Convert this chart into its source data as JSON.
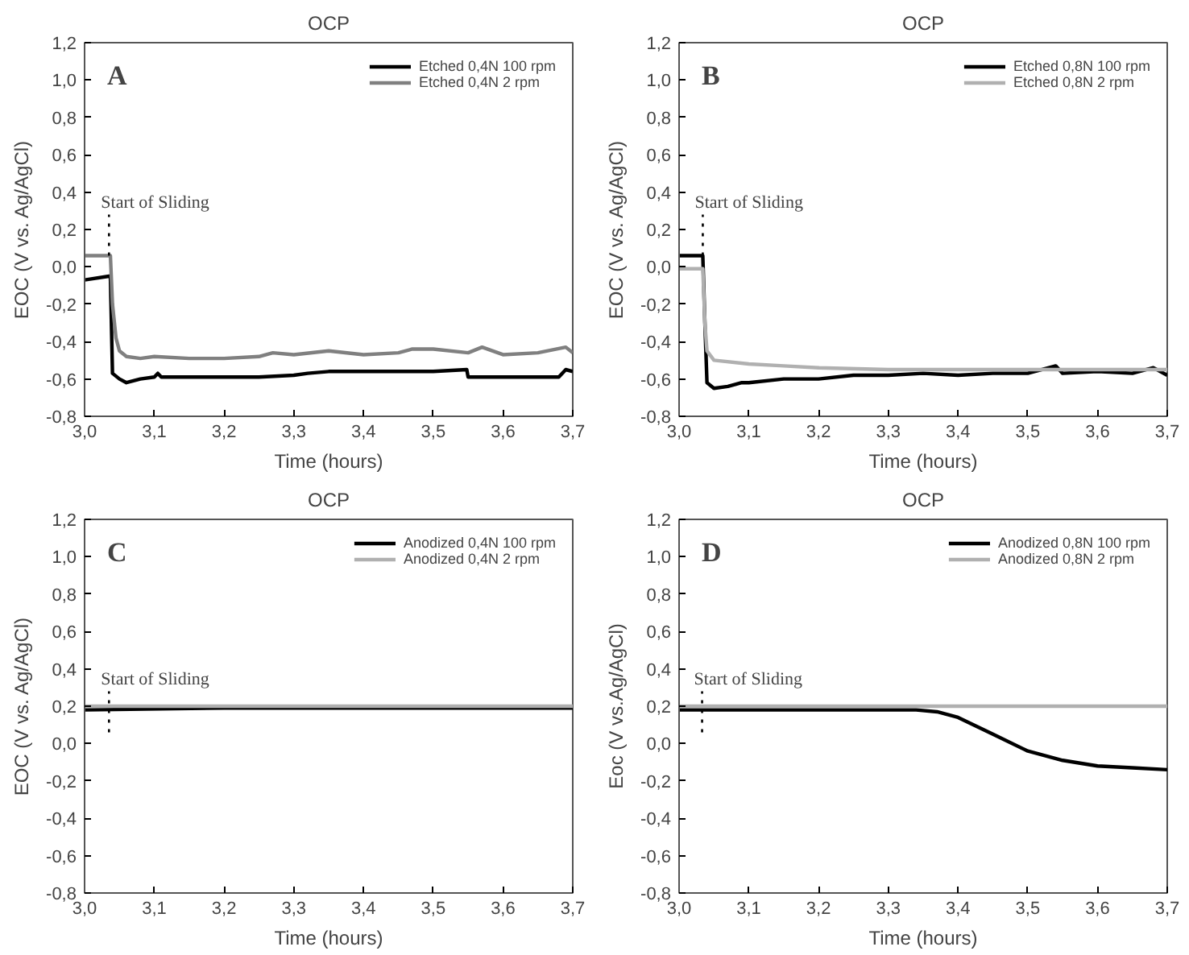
{
  "chart_data": [
    {
      "type": "line",
      "title": "OCP",
      "xlabel": "Time (hours)",
      "ylabel": "EOC (V vs. Ag/AgCl)",
      "annotations": [
        "A"
      ],
      "ref_lines": [
        {
          "axis": "x",
          "value": 3.035,
          "label": "Start of Sliding",
          "line_style": "dotted",
          "color": "#000000"
        }
      ],
      "xlim": [
        3.0,
        3.7
      ],
      "ylim": [
        -0.8,
        1.2
      ],
      "xticks": [
        {
          "value": 3.0,
          "label": "3,0"
        },
        {
          "value": 3.1,
          "label": "3,1"
        },
        {
          "value": 3.2,
          "label": "3,2"
        },
        {
          "value": 3.3,
          "label": "3,3"
        },
        {
          "value": 3.4,
          "label": "3,4"
        },
        {
          "value": 3.5,
          "label": "3,5"
        },
        {
          "value": 3.6,
          "label": "3,6"
        },
        {
          "value": 3.7,
          "label": "3,7"
        }
      ],
      "yticks": [
        {
          "value": -0.8,
          "label": "-0,8"
        },
        {
          "value": -0.6,
          "label": "-0,6"
        },
        {
          "value": -0.4,
          "label": "-0,4"
        },
        {
          "value": -0.2,
          "label": "-0,2"
        },
        {
          "value": 0.0,
          "label": "0,0"
        },
        {
          "value": 0.2,
          "label": "0,2"
        },
        {
          "value": 0.4,
          "label": "0,4"
        },
        {
          "value": 0.6,
          "label": "0,6"
        },
        {
          "value": 0.8,
          "label": "0,8"
        },
        {
          "value": 1.0,
          "label": "1,0"
        },
        {
          "value": 1.2,
          "label": "1,2"
        }
      ],
      "grid": false,
      "legend": "top right",
      "line_style": "solid",
      "marker": "none",
      "series": [
        {
          "name": "Etched 0,4N 100 rpm",
          "color": "#000000",
          "x": [
            3.0,
            3.035,
            3.037,
            3.04,
            3.05,
            3.06,
            3.07,
            3.08,
            3.1,
            3.105,
            3.11,
            3.15,
            3.2,
            3.25,
            3.3,
            3.32,
            3.35,
            3.4,
            3.45,
            3.5,
            3.548,
            3.55,
            3.6,
            3.65,
            3.68,
            3.69,
            3.7
          ],
          "values": [
            -0.07,
            -0.05,
            -0.05,
            -0.57,
            -0.6,
            -0.62,
            -0.61,
            -0.6,
            -0.59,
            -0.57,
            -0.59,
            -0.59,
            -0.59,
            -0.59,
            -0.58,
            -0.57,
            -0.56,
            -0.56,
            -0.56,
            -0.56,
            -0.55,
            -0.59,
            -0.59,
            -0.59,
            -0.59,
            -0.55,
            -0.56
          ]
        },
        {
          "name": "Etched 0,4N 2 rpm",
          "color": "#808080",
          "x": [
            3.0,
            3.037,
            3.04,
            3.045,
            3.05,
            3.06,
            3.08,
            3.1,
            3.15,
            3.2,
            3.25,
            3.27,
            3.3,
            3.35,
            3.4,
            3.45,
            3.47,
            3.5,
            3.55,
            3.57,
            3.6,
            3.65,
            3.69,
            3.7
          ],
          "values": [
            0.06,
            0.06,
            -0.2,
            -0.38,
            -0.45,
            -0.48,
            -0.49,
            -0.48,
            -0.49,
            -0.49,
            -0.48,
            -0.46,
            -0.47,
            -0.45,
            -0.47,
            -0.46,
            -0.44,
            -0.44,
            -0.46,
            -0.43,
            -0.47,
            -0.46,
            -0.43,
            -0.46
          ]
        }
      ]
    },
    {
      "type": "line",
      "title": "OCP",
      "xlabel": "Time (hours)",
      "ylabel": "EOC (V vs. Ag/AgCl)",
      "annotations": [
        "B"
      ],
      "ref_lines": [
        {
          "axis": "x",
          "value": 3.034,
          "label": "Start of Sliding",
          "line_style": "dotted",
          "color": "#000000"
        }
      ],
      "xlim": [
        3.0,
        3.7
      ],
      "ylim": [
        -0.8,
        1.2
      ],
      "xticks": [
        {
          "value": 3.0,
          "label": "3,0"
        },
        {
          "value": 3.1,
          "label": "3,1"
        },
        {
          "value": 3.2,
          "label": "3,2"
        },
        {
          "value": 3.3,
          "label": "3,3"
        },
        {
          "value": 3.4,
          "label": "3,4"
        },
        {
          "value": 3.5,
          "label": "3,5"
        },
        {
          "value": 3.6,
          "label": "3,6"
        },
        {
          "value": 3.7,
          "label": "3,7"
        }
      ],
      "yticks": [
        {
          "value": -0.8,
          "label": "-0,8"
        },
        {
          "value": -0.6,
          "label": "-0,6"
        },
        {
          "value": -0.4,
          "label": "-0,4"
        },
        {
          "value": -0.2,
          "label": "-0,2"
        },
        {
          "value": 0.0,
          "label": "0,0"
        },
        {
          "value": 0.2,
          "label": "0,2"
        },
        {
          "value": 0.4,
          "label": "0,4"
        },
        {
          "value": 0.6,
          "label": "0,6"
        },
        {
          "value": 0.8,
          "label": "0,8"
        },
        {
          "value": 1.0,
          "label": "1,0"
        },
        {
          "value": 1.2,
          "label": "1,2"
        }
      ],
      "grid": false,
      "legend": "top right",
      "line_style": "solid",
      "marker": "none",
      "series": [
        {
          "name": "Etched 0,8N 100 rpm",
          "color": "#000000",
          "x": [
            3.0,
            3.034,
            3.037,
            3.04,
            3.05,
            3.07,
            3.09,
            3.1,
            3.15,
            3.2,
            3.25,
            3.3,
            3.35,
            3.4,
            3.45,
            3.5,
            3.54,
            3.55,
            3.6,
            3.65,
            3.68,
            3.7
          ],
          "values": [
            0.06,
            0.06,
            -0.3,
            -0.62,
            -0.65,
            -0.64,
            -0.62,
            -0.62,
            -0.6,
            -0.6,
            -0.58,
            -0.58,
            -0.57,
            -0.58,
            -0.57,
            -0.57,
            -0.53,
            -0.57,
            -0.56,
            -0.57,
            -0.54,
            -0.58
          ]
        },
        {
          "name": "Etched 0,8N 2 rpm",
          "color": "#b0b0b0",
          "x": [
            3.0,
            3.034,
            3.037,
            3.04,
            3.05,
            3.1,
            3.15,
            3.2,
            3.3,
            3.4,
            3.5,
            3.6,
            3.7
          ],
          "values": [
            -0.01,
            -0.01,
            -0.3,
            -0.45,
            -0.5,
            -0.52,
            -0.53,
            -0.54,
            -0.55,
            -0.55,
            -0.55,
            -0.55,
            -0.55
          ]
        }
      ]
    },
    {
      "type": "line",
      "title": "OCP",
      "xlabel": "Time (hours)",
      "ylabel": "EOC (V vs. Ag/AgCl)",
      "annotations": [
        "C"
      ],
      "ref_lines": [
        {
          "axis": "x",
          "value": 3.035,
          "label": "Start of Sliding",
          "line_style": "dotted",
          "color": "#000000"
        }
      ],
      "xlim": [
        3.0,
        3.7
      ],
      "ylim": [
        -0.8,
        1.2
      ],
      "xticks": [
        {
          "value": 3.0,
          "label": "3,0"
        },
        {
          "value": 3.1,
          "label": "3,1"
        },
        {
          "value": 3.2,
          "label": "3,2"
        },
        {
          "value": 3.3,
          "label": "3,3"
        },
        {
          "value": 3.4,
          "label": "3,4"
        },
        {
          "value": 3.5,
          "label": "3,5"
        },
        {
          "value": 3.6,
          "label": "3,6"
        },
        {
          "value": 3.7,
          "label": "3,7"
        }
      ],
      "yticks": [
        {
          "value": -0.8,
          "label": "-0,8"
        },
        {
          "value": -0.6,
          "label": "-0,6"
        },
        {
          "value": -0.4,
          "label": "-0,4"
        },
        {
          "value": -0.2,
          "label": "-0,2"
        },
        {
          "value": 0.0,
          "label": "0,0"
        },
        {
          "value": 0.2,
          "label": "0,2"
        },
        {
          "value": 0.4,
          "label": "0,4"
        },
        {
          "value": 0.6,
          "label": "0,6"
        },
        {
          "value": 0.8,
          "label": "0,8"
        },
        {
          "value": 1.0,
          "label": "1,0"
        },
        {
          "value": 1.2,
          "label": "1,2"
        }
      ],
      "grid": false,
      "legend": "top right",
      "line_style": "solid",
      "marker": "none",
      "series": [
        {
          "name": "Anodized 0,4N 100 rpm",
          "color": "#000000",
          "x": [
            3.0,
            3.2,
            3.4,
            3.7
          ],
          "values": [
            0.18,
            0.19,
            0.19,
            0.19
          ]
        },
        {
          "name": "Anodized 0,4N 2 rpm",
          "color": "#b0b0b0",
          "x": [
            3.0,
            3.7
          ],
          "values": [
            0.2,
            0.2
          ]
        }
      ]
    },
    {
      "type": "line",
      "title": "OCP",
      "xlabel": "Time (hours)",
      "ylabel": "Eoc (V vs.Ag/AgCl)",
      "annotations": [
        "D"
      ],
      "ref_lines": [
        {
          "axis": "x",
          "value": 3.033,
          "label": "Start of Sliding",
          "line_style": "dotted",
          "color": "#000000"
        }
      ],
      "xlim": [
        3.0,
        3.7
      ],
      "ylim": [
        -0.8,
        1.2
      ],
      "xticks": [
        {
          "value": 3.0,
          "label": "3,0"
        },
        {
          "value": 3.1,
          "label": "3,1"
        },
        {
          "value": 3.2,
          "label": "3,2"
        },
        {
          "value": 3.3,
          "label": "3,3"
        },
        {
          "value": 3.4,
          "label": "3,4"
        },
        {
          "value": 3.5,
          "label": "3,5"
        },
        {
          "value": 3.6,
          "label": "3,6"
        },
        {
          "value": 3.7,
          "label": "3,7"
        }
      ],
      "yticks": [
        {
          "value": -0.8,
          "label": "-0,8"
        },
        {
          "value": -0.6,
          "label": "-0,6"
        },
        {
          "value": -0.4,
          "label": "-0,4"
        },
        {
          "value": -0.2,
          "label": "-0,2"
        },
        {
          "value": 0.0,
          "label": "0,0"
        },
        {
          "value": 0.2,
          "label": "0,2"
        },
        {
          "value": 0.4,
          "label": "0,4"
        },
        {
          "value": 0.6,
          "label": "0,6"
        },
        {
          "value": 0.8,
          "label": "0,8"
        },
        {
          "value": 1.0,
          "label": "1,0"
        },
        {
          "value": 1.2,
          "label": "1,2"
        }
      ],
      "grid": false,
      "legend": "top right",
      "line_style": "solid",
      "marker": "none",
      "series": [
        {
          "name": "Anodized 0,8N 100 rpm",
          "color": "#000000",
          "x": [
            3.0,
            3.2,
            3.34,
            3.37,
            3.4,
            3.45,
            3.5,
            3.55,
            3.6,
            3.65,
            3.7
          ],
          "values": [
            0.18,
            0.18,
            0.18,
            0.17,
            0.14,
            0.05,
            -0.04,
            -0.09,
            -0.12,
            -0.13,
            -0.14
          ]
        },
        {
          "name": "Anodized 0,8N 2 rpm",
          "color": "#b0b0b0",
          "x": [
            3.0,
            3.7
          ],
          "values": [
            0.2,
            0.2
          ]
        }
      ]
    }
  ]
}
